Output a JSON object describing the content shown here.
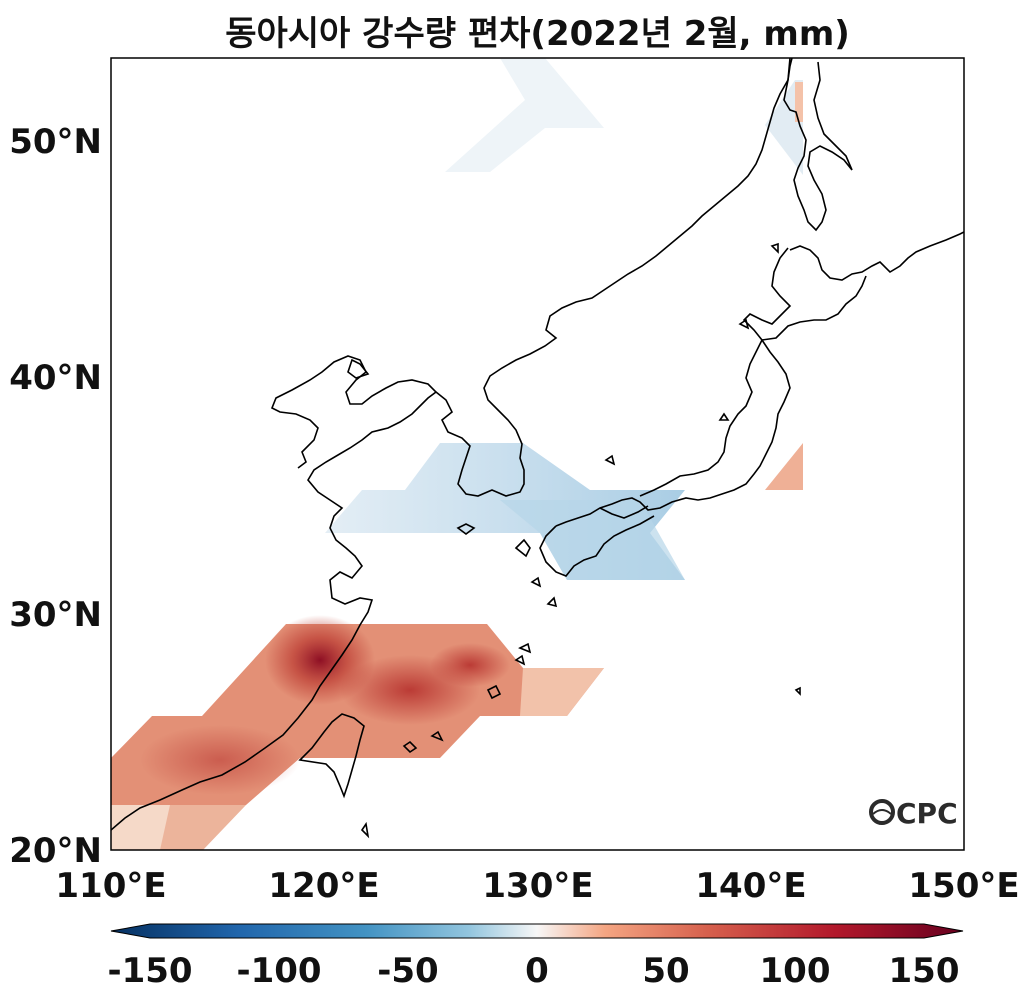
{
  "title": "동아시아 강수량 편차(2022년 2월, mm)",
  "axes": {
    "lon_ticks": [
      "110°E",
      "120°E",
      "130°E",
      "140°E",
      "150°E"
    ],
    "lat_ticks": [
      "50°N",
      "40°N",
      "30°N",
      "20°N"
    ],
    "lon_range": [
      110,
      150
    ],
    "lat_range": [
      20,
      53.5
    ]
  },
  "colorbar": {
    "ticks": [
      "-150",
      "-100",
      "-50",
      "0",
      "50",
      "100",
      "150"
    ],
    "range": [
      -150,
      150
    ],
    "colormap": "RdBu_r",
    "colors": {
      "neg_max": "#053061",
      "neg_mid": "#4393c3",
      "zero": "#f7f7f7",
      "pos_mid": "#d6604d",
      "pos_max": "#67001f"
    }
  },
  "logo": "CPC",
  "anomaly_regions": [
    {
      "name": "south-china-positive",
      "sign": "positive",
      "peak_value": 130
    },
    {
      "name": "korea-japan-negative",
      "sign": "negative",
      "peak_value": -40
    },
    {
      "name": "honshu-east-positive",
      "sign": "positive",
      "peak_value": 40
    },
    {
      "name": "northeast-china-negative",
      "sign": "negative",
      "peak_value": -10
    },
    {
      "name": "sakhalin-mixed",
      "sign": "mixed",
      "peak_value": 25
    }
  ]
}
